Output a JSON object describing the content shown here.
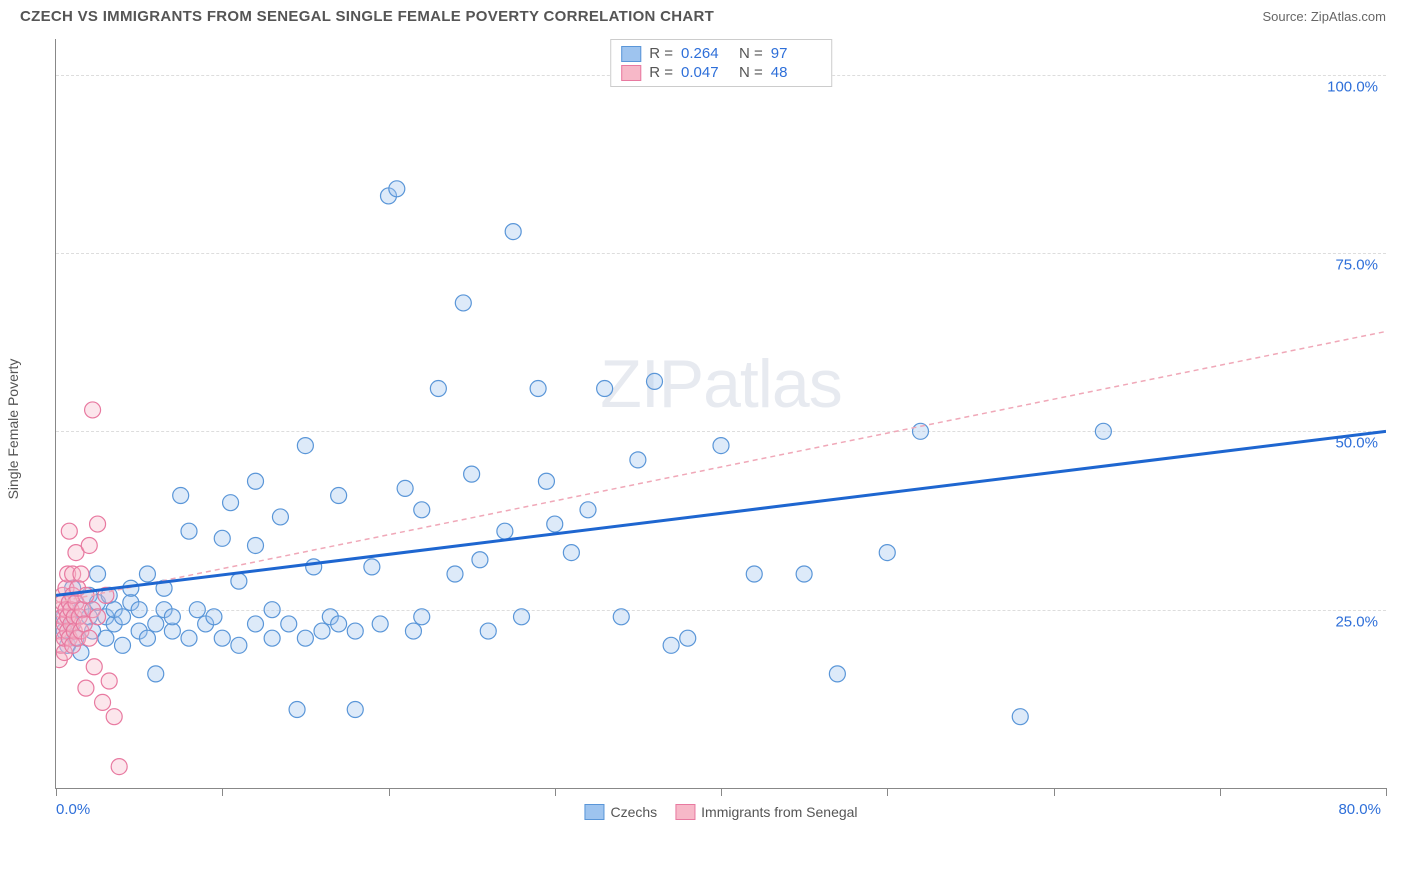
{
  "title": "CZECH VS IMMIGRANTS FROM SENEGAL SINGLE FEMALE POVERTY CORRELATION CHART",
  "source_prefix": "Source: ",
  "source_name": "ZipAtlas.com",
  "y_axis_title": "Single Female Poverty",
  "watermark_bold": "ZIP",
  "watermark_thin": "atlas",
  "chart": {
    "type": "scatter",
    "xlim": [
      0,
      80
    ],
    "ylim": [
      0,
      105
    ],
    "x_ticks": [
      0,
      10,
      20,
      30,
      40,
      50,
      60,
      70,
      80
    ],
    "x_tick_labels": {
      "0": "0.0%",
      "80": "80.0%"
    },
    "y_gridlines": [
      25,
      50,
      75,
      100
    ],
    "y_tick_labels": {
      "25": "25.0%",
      "50": "50.0%",
      "75": "75.0%",
      "100": "100.0%"
    },
    "background_color": "#ffffff",
    "grid_color": "#dddddd",
    "axis_color": "#888888",
    "marker_radius": 8,
    "series": [
      {
        "id": "czechs",
        "label": "Czechs",
        "fill": "#9ec4ef",
        "stroke": "#5a96d8",
        "R": "0.264",
        "N": "97",
        "trend": {
          "x1": 0,
          "y1": 27,
          "x2": 80,
          "y2": 50,
          "color": "#1e66d0",
          "width": 3,
          "dash": "none"
        },
        "points": [
          [
            0.5,
            22
          ],
          [
            0.5,
            24
          ],
          [
            0.7,
            20
          ],
          [
            0.8,
            26
          ],
          [
            1,
            23
          ],
          [
            1,
            28
          ],
          [
            1.2,
            21
          ],
          [
            1.5,
            25
          ],
          [
            1.5,
            19
          ],
          [
            2,
            24
          ],
          [
            2,
            27
          ],
          [
            2.2,
            22
          ],
          [
            2.5,
            26
          ],
          [
            2.5,
            30
          ],
          [
            3,
            21
          ],
          [
            3,
            24
          ],
          [
            3.2,
            27
          ],
          [
            3.5,
            23
          ],
          [
            3.5,
            25
          ],
          [
            4,
            20
          ],
          [
            4,
            24
          ],
          [
            4.5,
            26
          ],
          [
            4.5,
            28
          ],
          [
            5,
            22
          ],
          [
            5,
            25
          ],
          [
            5.5,
            21
          ],
          [
            5.5,
            30
          ],
          [
            6,
            23
          ],
          [
            6,
            16
          ],
          [
            6.5,
            25
          ],
          [
            6.5,
            28
          ],
          [
            7,
            22
          ],
          [
            7,
            24
          ],
          [
            7.5,
            41
          ],
          [
            8,
            21
          ],
          [
            8,
            36
          ],
          [
            8.5,
            25
          ],
          [
            9,
            23
          ],
          [
            9.5,
            24
          ],
          [
            10,
            35
          ],
          [
            10,
            21
          ],
          [
            10.5,
            40
          ],
          [
            11,
            29
          ],
          [
            11,
            20
          ],
          [
            12,
            43
          ],
          [
            12,
            34
          ],
          [
            12,
            23
          ],
          [
            13,
            21
          ],
          [
            13,
            25
          ],
          [
            13.5,
            38
          ],
          [
            14,
            23
          ],
          [
            14.5,
            11
          ],
          [
            15,
            48
          ],
          [
            15,
            21
          ],
          [
            15.5,
            31
          ],
          [
            16,
            22
          ],
          [
            16.5,
            24
          ],
          [
            17,
            41
          ],
          [
            17,
            23
          ],
          [
            18,
            22
          ],
          [
            18,
            11
          ],
          [
            19,
            31
          ],
          [
            19.5,
            23
          ],
          [
            20,
            83
          ],
          [
            20.5,
            84
          ],
          [
            21,
            42
          ],
          [
            21.5,
            22
          ],
          [
            22,
            39
          ],
          [
            22,
            24
          ],
          [
            23,
            56
          ],
          [
            24,
            30
          ],
          [
            24.5,
            68
          ],
          [
            25,
            44
          ],
          [
            25.5,
            32
          ],
          [
            26,
            22
          ],
          [
            27,
            36
          ],
          [
            27.5,
            78
          ],
          [
            28,
            24
          ],
          [
            29,
            56
          ],
          [
            29.5,
            43
          ],
          [
            30,
            37
          ],
          [
            31,
            33
          ],
          [
            32,
            39
          ],
          [
            33,
            56
          ],
          [
            34,
            24
          ],
          [
            35,
            46
          ],
          [
            36,
            57
          ],
          [
            37,
            20
          ],
          [
            38,
            21
          ],
          [
            40,
            48
          ],
          [
            42,
            30
          ],
          [
            45,
            30
          ],
          [
            47,
            16
          ],
          [
            50,
            33
          ],
          [
            52,
            50
          ],
          [
            58,
            10
          ],
          [
            63,
            50
          ]
        ]
      },
      {
        "id": "senegal",
        "label": "Immigrants from Senegal",
        "fill": "#f7b8c8",
        "stroke": "#e879a0",
        "R": "0.047",
        "N": "48",
        "trend": {
          "x1": 0,
          "y1": 26,
          "x2": 80,
          "y2": 64,
          "color": "#f0a8b8",
          "width": 1.5,
          "dash": "5,4"
        },
        "points": [
          [
            0.2,
            18
          ],
          [
            0.2,
            22
          ],
          [
            0.3,
            25
          ],
          [
            0.3,
            20
          ],
          [
            0.4,
            24
          ],
          [
            0.4,
            27
          ],
          [
            0.4,
            26
          ],
          [
            0.5,
            19
          ],
          [
            0.5,
            23
          ],
          [
            0.5,
            21
          ],
          [
            0.6,
            25
          ],
          [
            0.6,
            28
          ],
          [
            0.7,
            24
          ],
          [
            0.7,
            22
          ],
          [
            0.7,
            30
          ],
          [
            0.8,
            26
          ],
          [
            0.8,
            21
          ],
          [
            0.8,
            36
          ],
          [
            0.9,
            23
          ],
          [
            0.9,
            25
          ],
          [
            1.0,
            20
          ],
          [
            1.0,
            27
          ],
          [
            1.0,
            30
          ],
          [
            1.1,
            24
          ],
          [
            1.1,
            22
          ],
          [
            1.2,
            26
          ],
          [
            1.2,
            33
          ],
          [
            1.3,
            21
          ],
          [
            1.3,
            28
          ],
          [
            1.4,
            24
          ],
          [
            1.5,
            22
          ],
          [
            1.5,
            30
          ],
          [
            1.6,
            25
          ],
          [
            1.7,
            23
          ],
          [
            1.8,
            14
          ],
          [
            1.8,
            27
          ],
          [
            2.0,
            21
          ],
          [
            2.0,
            34
          ],
          [
            2.2,
            25
          ],
          [
            2.3,
            17
          ],
          [
            2.5,
            24
          ],
          [
            2.5,
            37
          ],
          [
            2.8,
            12
          ],
          [
            3.0,
            27
          ],
          [
            3.2,
            15
          ],
          [
            3.5,
            10
          ],
          [
            3.8,
            3
          ],
          [
            2.2,
            53
          ]
        ]
      }
    ]
  },
  "legend_top_labels": {
    "R": "R =",
    "N": "N ="
  },
  "colors": {
    "tick_label": "#2e6fd9",
    "text": "#555555"
  }
}
